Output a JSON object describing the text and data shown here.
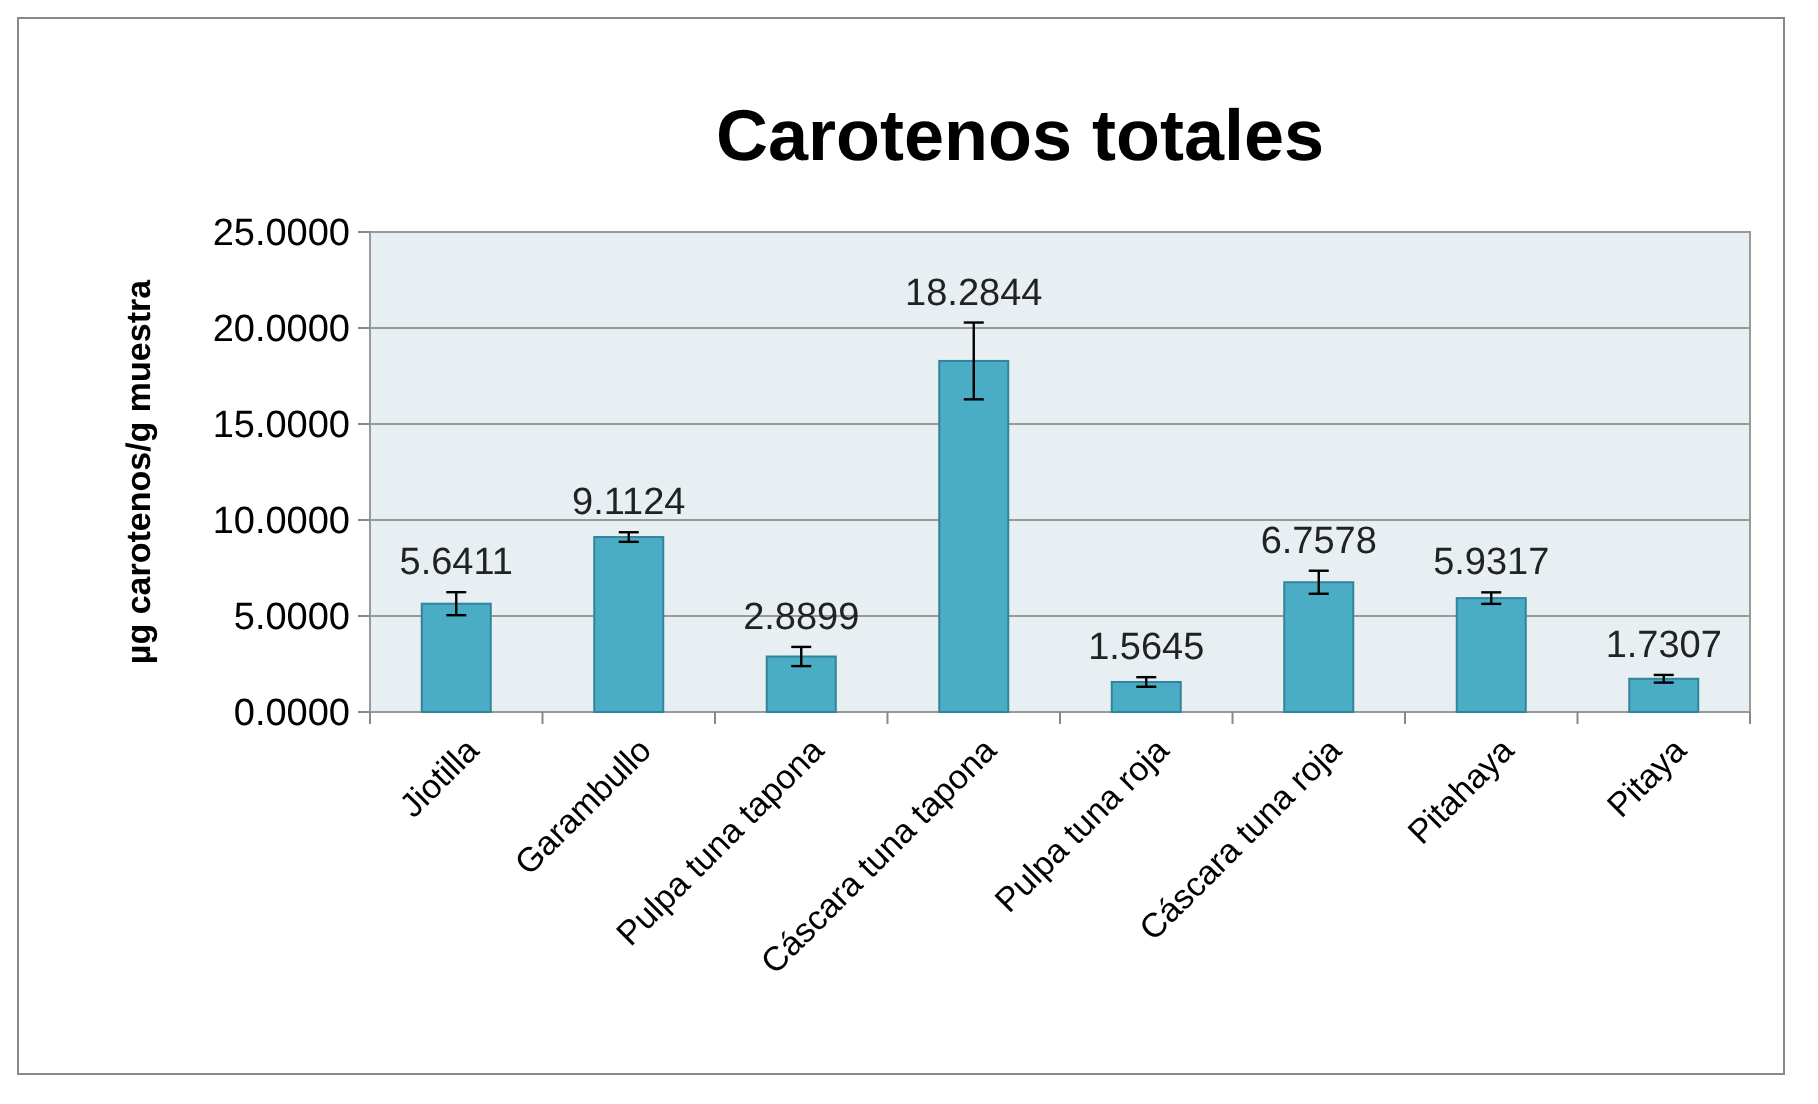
{
  "chart_data": {
    "type": "bar",
    "title": "Carotenos totales",
    "ylabel": "µg carotenos/g muestra",
    "categories": [
      "Jiotilla",
      "Garambullo",
      "Pulpa tuna tapona",
      "Cáscara tuna tapona",
      "Pulpa tuna roja",
      "Cáscara tuna roja",
      "Pitahaya",
      "Pitaya"
    ],
    "values": [
      5.6411,
      9.1124,
      2.8899,
      18.2844,
      1.5645,
      6.7578,
      5.9317,
      1.7307
    ],
    "errors": [
      0.6,
      0.25,
      0.5,
      2.0,
      0.25,
      0.6,
      0.3,
      0.2
    ],
    "color": "#4bacc6",
    "data_labels": true,
    "grid": "y",
    "ylim": [
      0,
      25
    ],
    "yticks": [
      {
        "value": 0,
        "label": "0.0000"
      },
      {
        "value": 5,
        "label": "5.0000"
      },
      {
        "value": 10,
        "label": "10.0000"
      },
      {
        "value": 15,
        "label": "15.0000"
      },
      {
        "value": 20,
        "label": "20.0000"
      },
      {
        "value": 25,
        "label": "25.0000"
      }
    ]
  }
}
